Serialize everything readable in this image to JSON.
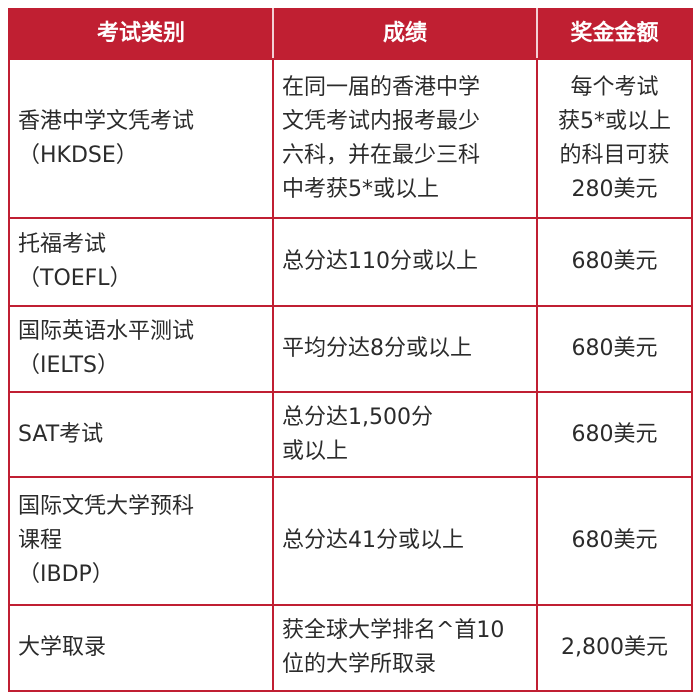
{
  "header": {
    "col1": "考试类别",
    "col2": "成绩",
    "col3": "奖金金额"
  },
  "header_color": "#c01f32",
  "rows": [
    {
      "exam": "香港中学文凭考试\n（HKDSE）",
      "score": "在同一届的香港中学\n文凭考试内报考最少\n六科，并在最少三科\n中考获5*或以上",
      "award": "每个考试\n获5*或以上\n的科目可获\n280美元"
    },
    {
      "exam": "托福考试\n（TOEFL）",
      "score": "总分达110分或以上",
      "award": "680美元"
    },
    {
      "exam": "国际英语水平测试\n（IELTS）",
      "score": "平均分达8分或以上",
      "award": "680美元"
    },
    {
      "exam": "SAT考试",
      "score": "总分达1,500分\n或以上",
      "award": "680美元"
    },
    {
      "exam": "国际文凭大学预科\n课程\n（IBDP）",
      "score": "总分达41分或以上",
      "award": "680美元"
    },
    {
      "exam": "大学取录",
      "score": "获全球大学排名^首10\n位的大学所取录",
      "award": "2,800美元"
    }
  ]
}
